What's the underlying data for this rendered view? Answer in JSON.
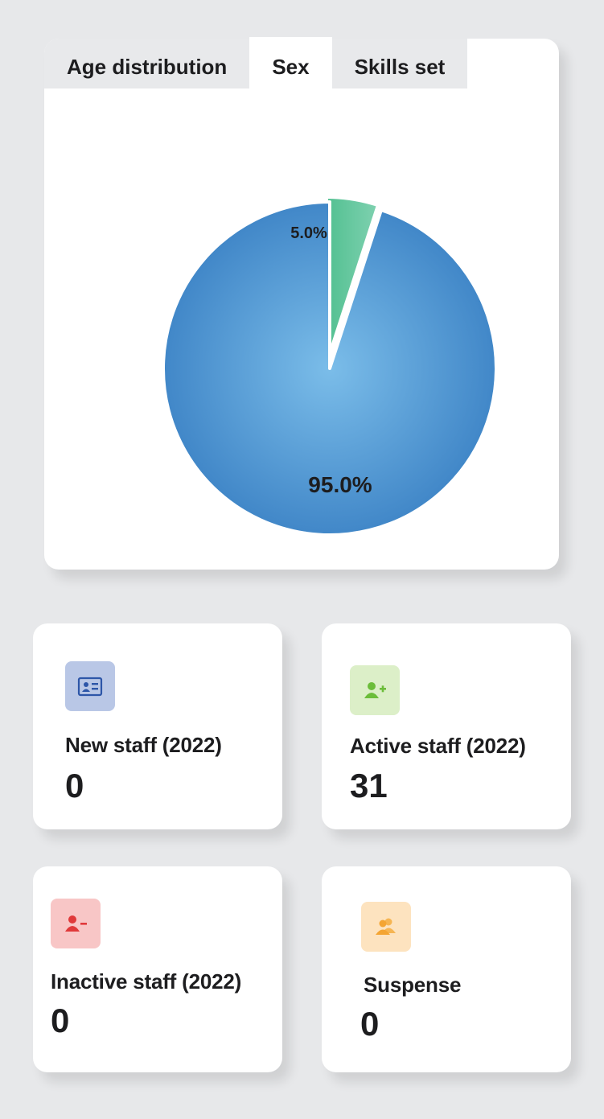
{
  "tabs": [
    {
      "label": "Age distribution",
      "active": false
    },
    {
      "label": "Sex",
      "active": true
    },
    {
      "label": "Skills set",
      "active": false
    }
  ],
  "chart_data": {
    "type": "pie",
    "categories": [
      "",
      ""
    ],
    "values": [
      5.0,
      95.0
    ],
    "labels": [
      "5.0%",
      "95.0%"
    ],
    "colors": [
      "#5cc49b",
      "#4488cc"
    ]
  },
  "stats": {
    "new_staff": {
      "label": "New staff (2022)",
      "value": "0",
      "icon": "id-card-icon",
      "icon_bg": "#b9c7e6",
      "icon_color": "#2d56a8"
    },
    "active_staff": {
      "label": "Active staff (2022)",
      "value": "31",
      "icon": "user-plus-icon",
      "icon_bg": "#dcefc8",
      "icon_color": "#6cbd3a"
    },
    "inactive_staff": {
      "label": "Inactive staff (2022)",
      "value": "0",
      "icon": "user-minus-icon",
      "icon_bg": "#f8c6c6",
      "icon_color": "#e0393a"
    },
    "suspense": {
      "label": "Suspense",
      "value": "0",
      "icon": "users-icon",
      "icon_bg": "#fde3bf",
      "icon_color": "#f4a533"
    }
  }
}
